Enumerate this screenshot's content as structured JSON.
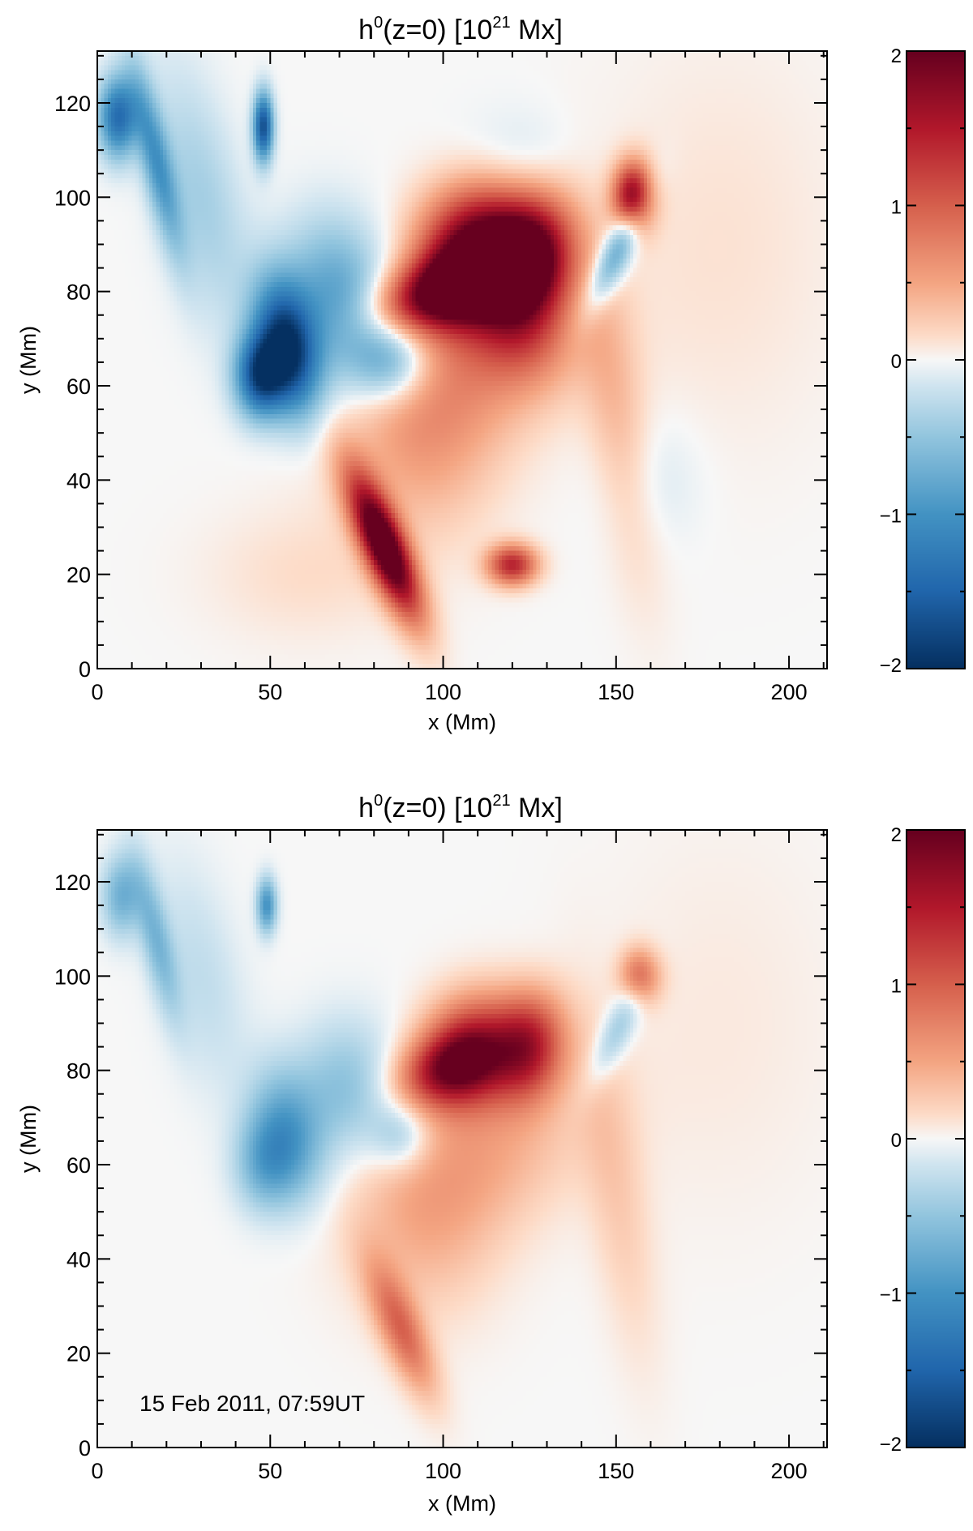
{
  "chart_data": [
    {
      "type": "heatmap",
      "title_main": "h",
      "title_sup": "0",
      "title_rest": "(z=0) [10",
      "title_exp": "21",
      "title_unit": " Mx]",
      "xlabel": "x (Mm)",
      "ylabel": "y (Mm)",
      "xlim": [
        0,
        211
      ],
      "ylim": [
        0,
        131
      ],
      "xticks": [
        0,
        50,
        100,
        150,
        200
      ],
      "yticks": [
        0,
        20,
        40,
        60,
        80,
        100,
        120
      ],
      "colorbar": {
        "min": -2,
        "max": 2,
        "ticks": [
          -2,
          -1,
          0,
          1,
          2
        ],
        "tick_labels": [
          "−2",
          "−1",
          "0",
          "1",
          "2"
        ]
      },
      "annotation": "",
      "features": [
        {
          "x": 110,
          "y": 88,
          "sx": 12,
          "sy": 10,
          "v": 2.3,
          "r": 0.4
        },
        {
          "x": 125,
          "y": 86,
          "sx": 8,
          "sy": 10,
          "v": 1.8,
          "r": -0.6
        },
        {
          "x": 100,
          "y": 80,
          "sx": 14,
          "sy": 5,
          "v": 1.6,
          "r": 0.2
        },
        {
          "x": 155,
          "y": 100,
          "sx": 4,
          "sy": 5,
          "v": 1.8,
          "r": 0.0
        },
        {
          "x": 83,
          "y": 26,
          "sx": 4,
          "sy": 12,
          "v": 2.4,
          "r": 0.55
        },
        {
          "x": 120,
          "y": 22,
          "sx": 5,
          "sy": 3,
          "v": 1.4,
          "r": 0.0
        },
        {
          "x": 105,
          "y": 62,
          "sx": 22,
          "sy": 12,
          "v": 0.55,
          "r": 0.3
        },
        {
          "x": 95,
          "y": 45,
          "sx": 15,
          "sy": 14,
          "v": 0.35,
          "r": 0.0
        },
        {
          "x": 150,
          "y": 55,
          "sx": 6,
          "sy": 25,
          "v": 0.35,
          "r": 0.2
        },
        {
          "x": 125,
          "y": 70,
          "sx": 10,
          "sy": 8,
          "v": 0.5,
          "r": 0.0
        },
        {
          "x": 180,
          "y": 90,
          "sx": 25,
          "sy": 30,
          "v": 0.12,
          "r": 0.0
        },
        {
          "x": 60,
          "y": 20,
          "sx": 20,
          "sy": 10,
          "v": 0.15,
          "r": 0.0
        },
        {
          "x": 55,
          "y": 68,
          "sx": 6,
          "sy": 10,
          "v": -1.9,
          "r": 0.3
        },
        {
          "x": 47,
          "y": 62,
          "sx": 5,
          "sy": 6,
          "v": -1.6,
          "r": 0.0
        },
        {
          "x": 70,
          "y": 78,
          "sx": 10,
          "sy": 12,
          "v": -0.9,
          "r": 0.5
        },
        {
          "x": 85,
          "y": 65,
          "sx": 8,
          "sy": 6,
          "v": -0.8,
          "r": 0.0
        },
        {
          "x": 48,
          "y": 115,
          "sx": 2,
          "sy": 5,
          "v": -1.7,
          "r": 0.0
        },
        {
          "x": 6,
          "y": 117,
          "sx": 4,
          "sy": 6,
          "v": -1.4,
          "r": 0.0
        },
        {
          "x": 17,
          "y": 108,
          "sx": 3,
          "sy": 14,
          "v": -0.9,
          "r": 0.3
        },
        {
          "x": 30,
          "y": 100,
          "sx": 8,
          "sy": 20,
          "v": -0.4,
          "r": 0.3
        },
        {
          "x": 150,
          "y": 88,
          "sx": 3,
          "sy": 10,
          "v": -0.9,
          "r": -0.6
        },
        {
          "x": 120,
          "y": 105,
          "sx": 12,
          "sy": 8,
          "v": -0.3,
          "r": 0.0
        },
        {
          "x": 160,
          "y": 40,
          "sx": 10,
          "sy": 10,
          "v": -0.15,
          "r": 0.0
        }
      ]
    },
    {
      "type": "heatmap",
      "title_main": "h",
      "title_sup": "0",
      "title_rest": "(z=0) [10",
      "title_exp": "21",
      "title_unit": " Mx]",
      "xlabel": "x (Mm)",
      "ylabel": "y (Mm)",
      "xlim": [
        0,
        211
      ],
      "ylim": [
        0,
        131
      ],
      "xticks": [
        0,
        50,
        100,
        150,
        200
      ],
      "yticks": [
        0,
        20,
        40,
        60,
        80,
        100,
        120
      ],
      "colorbar": {
        "min": -2,
        "max": 2,
        "ticks": [
          -2,
          -1,
          0,
          1,
          2
        ],
        "tick_labels": [
          "−2",
          "−1",
          "0",
          "1",
          "2"
        ]
      },
      "annotation": "15 Feb 2011, 07:59UT",
      "features": [
        {
          "x": 108,
          "y": 84,
          "sx": 10,
          "sy": 8,
          "v": 1.5,
          "r": 0.3
        },
        {
          "x": 125,
          "y": 85,
          "sx": 7,
          "sy": 8,
          "v": 1.3,
          "r": -0.5
        },
        {
          "x": 100,
          "y": 80,
          "sx": 10,
          "sy": 5,
          "v": 1.0,
          "r": 0.2
        },
        {
          "x": 157,
          "y": 100,
          "sx": 4,
          "sy": 4,
          "v": 0.9,
          "r": 0.0
        },
        {
          "x": 88,
          "y": 25,
          "sx": 4,
          "sy": 11,
          "v": 0.9,
          "r": 0.55
        },
        {
          "x": 110,
          "y": 62,
          "sx": 22,
          "sy": 12,
          "v": 0.45,
          "r": 0.3
        },
        {
          "x": 95,
          "y": 45,
          "sx": 15,
          "sy": 14,
          "v": 0.3,
          "r": 0.0
        },
        {
          "x": 150,
          "y": 55,
          "sx": 6,
          "sy": 25,
          "v": 0.25,
          "r": 0.2
        },
        {
          "x": 180,
          "y": 90,
          "sx": 25,
          "sy": 30,
          "v": 0.08,
          "r": 0.0
        },
        {
          "x": 55,
          "y": 66,
          "sx": 7,
          "sy": 10,
          "v": -0.85,
          "r": 0.3
        },
        {
          "x": 48,
          "y": 60,
          "sx": 6,
          "sy": 7,
          "v": -0.6,
          "r": 0.0
        },
        {
          "x": 72,
          "y": 76,
          "sx": 10,
          "sy": 10,
          "v": -0.55,
          "r": 0.5
        },
        {
          "x": 88,
          "y": 66,
          "sx": 6,
          "sy": 5,
          "v": -0.5,
          "r": 0.0
        },
        {
          "x": 49,
          "y": 115,
          "sx": 2,
          "sy": 4,
          "v": -1.0,
          "r": 0.0
        },
        {
          "x": 7,
          "y": 117,
          "sx": 4,
          "sy": 6,
          "v": -0.7,
          "r": 0.0
        },
        {
          "x": 17,
          "y": 108,
          "sx": 3,
          "sy": 12,
          "v": -0.6,
          "r": 0.3
        },
        {
          "x": 30,
          "y": 100,
          "sx": 8,
          "sy": 18,
          "v": -0.25,
          "r": 0.3
        },
        {
          "x": 150,
          "y": 88,
          "sx": 3,
          "sy": 9,
          "v": -0.5,
          "r": -0.6
        }
      ]
    }
  ]
}
